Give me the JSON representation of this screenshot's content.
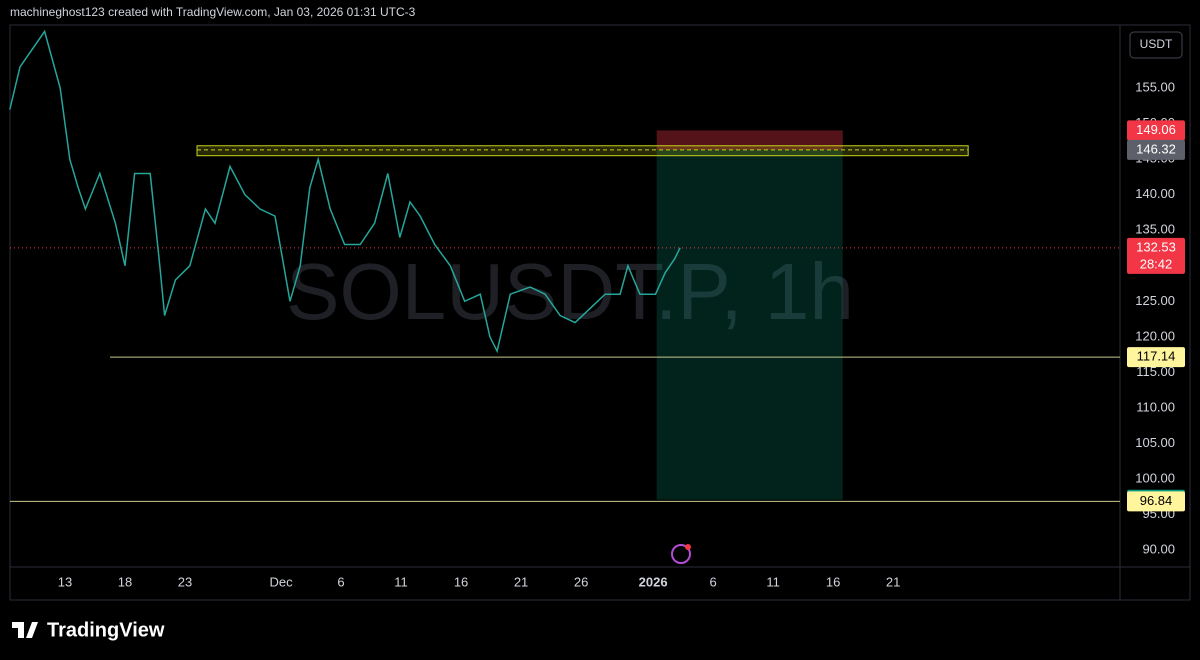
{
  "chart_data": {
    "type": "line",
    "title": "machineghost123 created with TradingView.com, Jan 03, 2026 01:31 UTC-3",
    "watermark": "SOLUSDT.P, 1h",
    "currency": "USDT",
    "brand": "TradingView",
    "color": "#26a69a",
    "x": [
      -4.6,
      -3.75,
      -1.7,
      -0.4,
      0.4,
      1.1,
      1.7,
      2.9,
      4.2,
      5,
      5.8,
      7.1,
      7.9,
      8.3,
      9.2,
      10.4,
      11.7,
      12.5,
      13.75,
      15,
      16.25,
      17.5,
      18.75,
      19.6,
      20.4,
      21.1,
      22.1,
      23.3,
      24.6,
      25.8,
      26.9,
      27.9,
      28.75,
      29.6,
      30.8,
      32.1,
      33.3,
      34.6,
      35.4,
      36,
      37.1,
      38.75,
      40,
      41.25,
      42.5,
      43.75,
      45,
      46.25,
      46.9,
      47.9,
      49.2,
      50,
      50.8,
      51.25
    ],
    "values": [
      152,
      158,
      163,
      155,
      145,
      141,
      138,
      143,
      136,
      130,
      143,
      143,
      130,
      123,
      128,
      130,
      138,
      136,
      144,
      140,
      138,
      137,
      125,
      130,
      141,
      145,
      138,
      133,
      133,
      136,
      143,
      134,
      139,
      137,
      133,
      130,
      125,
      126,
      120,
      118,
      126,
      127,
      126,
      123,
      122,
      124,
      126,
      126,
      130,
      126,
      126,
      129,
      131,
      132.53
    ],
    "xlim": [
      -4.58,
      87.9
    ],
    "ylim": [
      87.6,
      163.9
    ],
    "xticks": [
      {
        "value": 0,
        "label": "13"
      },
      {
        "value": 5,
        "label": "18"
      },
      {
        "value": 10,
        "label": "23"
      },
      {
        "value": 18,
        "label": "Dec"
      },
      {
        "value": 23,
        "label": "6"
      },
      {
        "value": 28,
        "label": "11"
      },
      {
        "value": 33,
        "label": "16"
      },
      {
        "value": 38,
        "label": "21"
      },
      {
        "value": 43,
        "label": "26"
      },
      {
        "value": 49,
        "label": "2026",
        "bold": true
      },
      {
        "value": 54,
        "label": "6"
      },
      {
        "value": 59,
        "label": "11"
      },
      {
        "value": 64,
        "label": "16"
      },
      {
        "value": 69,
        "label": "21"
      }
    ],
    "yticks": [
      {
        "value": 155,
        "label": "155.00"
      },
      {
        "value": 150,
        "label": "150.00"
      },
      {
        "value": 145,
        "label": "145.00"
      },
      {
        "value": 140,
        "label": "140.00"
      },
      {
        "value": 135,
        "label": "135.00"
      },
      {
        "value": 130,
        "label": "130.00"
      },
      {
        "value": 125,
        "label": "125.00"
      },
      {
        "value": 120,
        "label": "120.00"
      },
      {
        "value": 115,
        "label": "115.00"
      },
      {
        "value": 110,
        "label": "110.00"
      },
      {
        "value": 105,
        "label": "105.00"
      },
      {
        "value": 100,
        "label": "100.00"
      },
      {
        "value": 95,
        "label": "95.00"
      },
      {
        "value": 90,
        "label": "90.00"
      }
    ],
    "levels": [
      {
        "value": 149.06,
        "color": "#f23645"
      },
      {
        "value": 146.32,
        "color": "#5d606b"
      },
      {
        "value": 132.53,
        "color": "#f23645",
        "countdown": "28:42"
      },
      {
        "value": 117.14,
        "color": "#fff59d"
      },
      {
        "value": 97.07,
        "color": "#089981"
      },
      {
        "value": 96.84,
        "color": "#fff59d"
      }
    ],
    "zone": {
      "x": [
        11.0,
        75.25
      ],
      "y": [
        145.5,
        146.9
      ],
      "color": "#c8d21e"
    },
    "support_start": 3.75,
    "position": {
      "x": [
        49.3,
        64.8
      ]
    }
  }
}
